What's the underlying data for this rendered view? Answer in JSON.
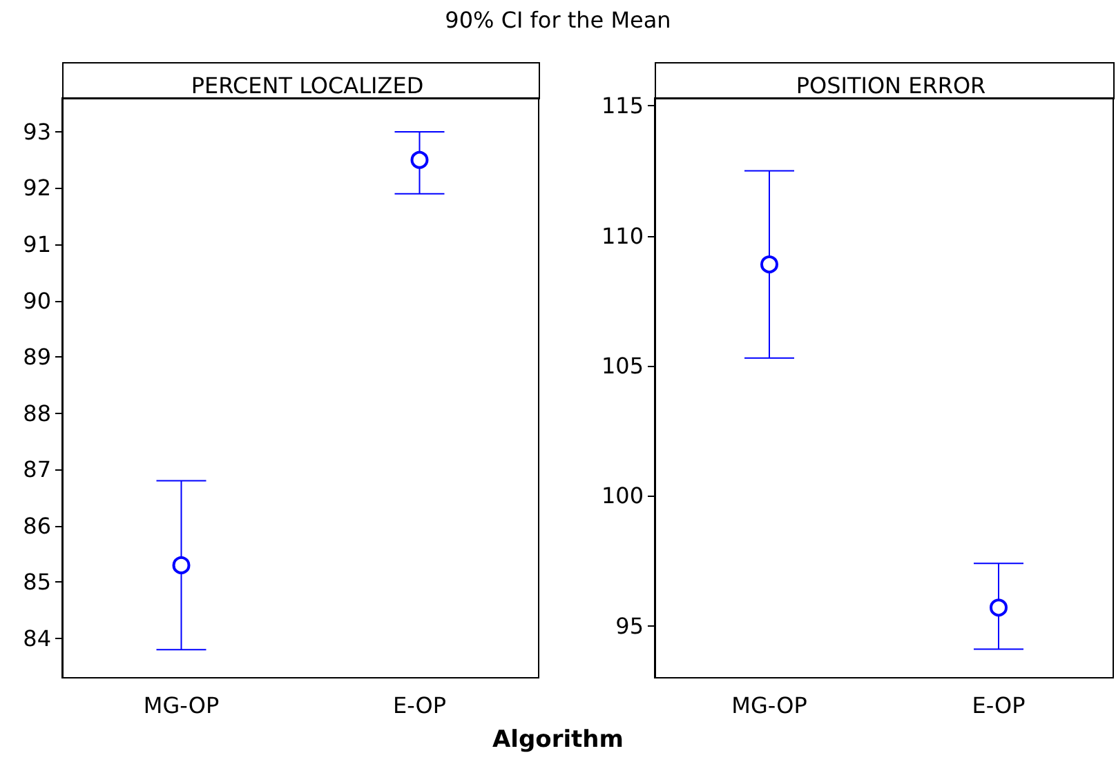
{
  "chart_data": [
    {
      "type": "scatter",
      "title": "PERCENT LOCALIZED",
      "annotations": [
        "90% CI for the Mean"
      ],
      "xlabel": "Algorithm",
      "categories": [
        "MG-OP",
        "E-OP"
      ],
      "series": [
        {
          "color": "#0000ff",
          "values": [
            85.3,
            92.5
          ],
          "errors": [
            [
              83.8,
              86.8
            ],
            [
              91.9,
              93.0
            ]
          ]
        }
      ],
      "ylim": [
        83.3,
        93.6
      ],
      "yticks": [
        84,
        85,
        86,
        87,
        88,
        89,
        90,
        91,
        92,
        93
      ],
      "marker": "circle",
      "grid": false
    },
    {
      "type": "scatter",
      "title": "POSITION ERROR",
      "categories": [
        "MG-OP",
        "E-OP"
      ],
      "series": [
        {
          "color": "#0000ff",
          "values": [
            108.9,
            95.7
          ],
          "errors": [
            [
              105.3,
              112.5
            ],
            [
              94.1,
              97.4
            ]
          ]
        }
      ],
      "ylim": [
        93.0,
        115.3
      ],
      "yticks": [
        95,
        100,
        105,
        110,
        115
      ],
      "marker": "circle",
      "grid": false
    }
  ]
}
